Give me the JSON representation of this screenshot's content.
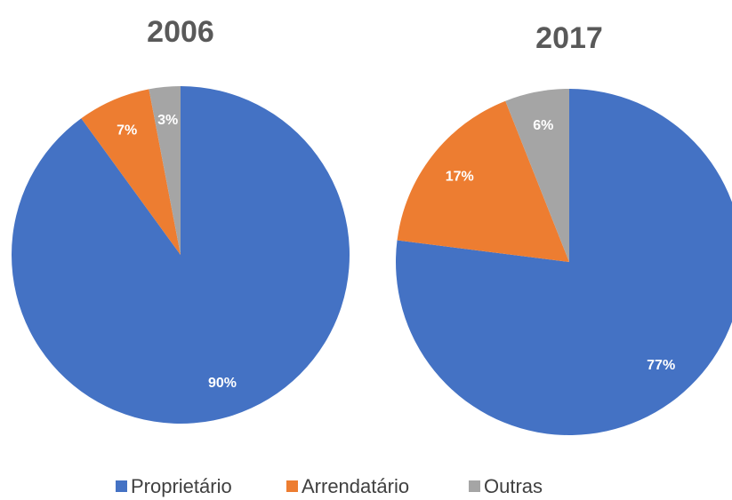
{
  "chart_data": [
    {
      "type": "pie",
      "title": "2006",
      "categories": [
        "Proprietário",
        "Arrendatário",
        "Outras"
      ],
      "values": [
        90,
        7,
        3
      ],
      "value_labels": [
        "90%",
        "7%",
        "3%"
      ],
      "colors": [
        "#4472c4",
        "#ed7d31",
        "#a5a5a5"
      ]
    },
    {
      "type": "pie",
      "title": "2017",
      "categories": [
        "Proprietário",
        "Arrendatário",
        "Outras"
      ],
      "values": [
        77,
        17,
        6
      ],
      "value_labels": [
        "77%",
        "17%",
        "6%"
      ],
      "colors": [
        "#4472c4",
        "#ed7d31",
        "#a5a5a5"
      ]
    }
  ]
}
